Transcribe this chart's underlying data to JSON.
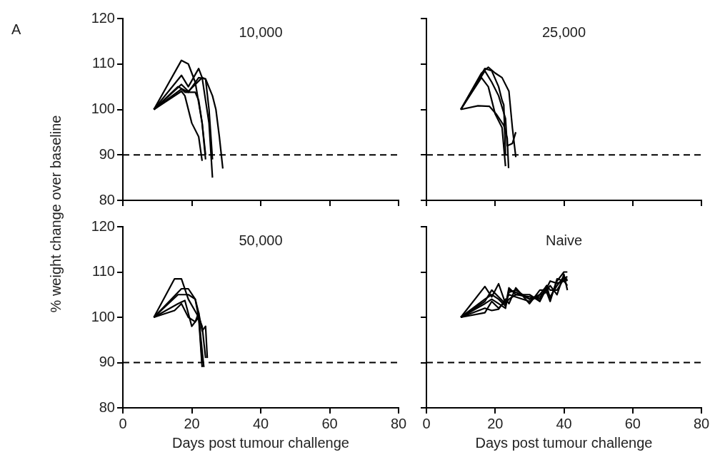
{
  "chart_data": [
    {
      "type": "line",
      "title": "10,000",
      "ylabel": "% weight change over baseline",
      "annotations": [
        "A"
      ],
      "xlim": [
        0,
        80
      ],
      "xticks": [
        0,
        20,
        40,
        60,
        80
      ],
      "ylim": [
        80,
        120
      ],
      "yticks": [
        80,
        90,
        100,
        110,
        120
      ],
      "tick_labels": "y",
      "marker": "none",
      "line_style": "solid",
      "legend": false,
      "ref_lines": [
        {
          "axis": "y",
          "value": 90,
          "color": "#000000",
          "line_style": "dashed"
        }
      ],
      "series": [
        {
          "color": "#000000",
          "x": [
            9,
            17,
            19,
            21,
            23,
            24
          ],
          "values": [
            100,
            110.8,
            110,
            106,
            97,
            90
          ]
        },
        {
          "color": "#000000",
          "x": [
            9,
            17,
            19,
            22,
            23,
            25,
            26
          ],
          "values": [
            100,
            107.5,
            105,
            109,
            107,
            97,
            85
          ]
        },
        {
          "color": "#000000",
          "x": [
            9,
            17,
            19,
            23,
            24,
            26,
            27,
            28,
            29
          ],
          "values": [
            100,
            105.5,
            104,
            107,
            106.7,
            103,
            100,
            94,
            87
          ]
        },
        {
          "color": "#000000",
          "x": [
            9,
            17,
            18,
            21,
            22,
            23,
            24
          ],
          "values": [
            100,
            104.5,
            103.8,
            103.8,
            102,
            97,
            89
          ]
        },
        {
          "color": "#000000",
          "x": [
            9,
            17,
            18,
            20,
            22,
            23
          ],
          "values": [
            100,
            104,
            103,
            97,
            94,
            88.7
          ]
        },
        {
          "color": "#000000",
          "x": [
            9,
            16,
            19,
            22,
            24,
            25,
            26
          ],
          "values": [
            100,
            105,
            103.8,
            107,
            106.7,
            100,
            89
          ]
        }
      ]
    },
    {
      "type": "line",
      "title": "25,000",
      "xlim": [
        0,
        80
      ],
      "xticks": [
        0,
        20,
        40,
        60,
        80
      ],
      "ylim": [
        80,
        120
      ],
      "yticks": [
        80,
        90,
        100,
        110,
        120
      ],
      "tick_labels": false,
      "marker": "none",
      "line_style": "solid",
      "legend": false,
      "ref_lines": [
        {
          "axis": "y",
          "value": 90,
          "color": "#000000",
          "line_style": "dashed"
        }
      ],
      "series": [
        {
          "color": "#000000",
          "x": [
            10,
            16,
            18,
            20,
            22,
            24,
            25,
            26
          ],
          "values": [
            100,
            108,
            109.3,
            108,
            107,
            104,
            96,
            89.5
          ]
        },
        {
          "color": "#000000",
          "x": [
            10,
            17,
            19,
            21,
            23,
            23.5,
            25,
            26
          ],
          "values": [
            100,
            108.5,
            106,
            103,
            98,
            92,
            92.5,
            95
          ]
        },
        {
          "color": "#000000",
          "x": [
            10,
            16,
            18,
            20,
            22,
            23
          ],
          "values": [
            100,
            107,
            105,
            99,
            96,
            87.5
          ]
        },
        {
          "color": "#000000",
          "x": [
            10,
            15,
            18.3,
            20.4,
            22.5,
            23.5,
            23.9
          ],
          "values": [
            100,
            100.8,
            100.7,
            98.9,
            96.5,
            93.7,
            87.1
          ]
        },
        {
          "color": "#000000",
          "x": [
            10,
            17,
            19,
            21,
            22,
            22.5,
            23
          ],
          "values": [
            100,
            109,
            108.5,
            105,
            102,
            101,
            90
          ]
        }
      ]
    },
    {
      "type": "line",
      "title": "50,000",
      "xlabel": "Days post tumour challenge",
      "xlim": [
        0,
        80
      ],
      "xticks": [
        0,
        20,
        40,
        60,
        80
      ],
      "ylim": [
        80,
        120
      ],
      "yticks": [
        80,
        90,
        100,
        110,
        120
      ],
      "marker": "none",
      "line_style": "solid",
      "legend": false,
      "ref_lines": [
        {
          "axis": "y",
          "value": 90,
          "color": "#000000",
          "line_style": "dashed"
        }
      ],
      "series": [
        {
          "color": "#000000",
          "x": [
            9,
            15,
            17,
            19,
            22,
            23
          ],
          "values": [
            100,
            108.5,
            108.5,
            104,
            100,
            89
          ]
        },
        {
          "color": "#000000",
          "x": [
            9,
            17,
            19,
            21,
            22,
            23
          ],
          "values": [
            100,
            106.3,
            106.3,
            104,
            101,
            90
          ]
        },
        {
          "color": "#000000",
          "x": [
            9,
            16,
            19,
            21,
            22,
            23.5
          ],
          "values": [
            100,
            105,
            105,
            104,
            100,
            89
          ]
        },
        {
          "color": "#000000",
          "x": [
            9,
            16,
            18,
            20,
            22,
            23,
            24
          ],
          "values": [
            100,
            103,
            103.7,
            98,
            100,
            98,
            91
          ]
        },
        {
          "color": "#000000",
          "x": [
            9,
            15,
            17,
            19,
            21,
            22,
            23,
            24,
            24.5
          ],
          "values": [
            100,
            101.5,
            103,
            100,
            99,
            101,
            97,
            98,
            91
          ]
        }
      ]
    },
    {
      "type": "line",
      "title": "Naive",
      "xlabel": "Days post tumour challenge",
      "xlim": [
        0,
        80
      ],
      "xticks": [
        0,
        20,
        40,
        60,
        80
      ],
      "ylim": [
        80,
        120
      ],
      "yticks": [
        80,
        90,
        100,
        110,
        120
      ],
      "tick_labels": "x",
      "marker": "none",
      "line_style": "solid",
      "legend": false,
      "ref_lines": [
        {
          "axis": "y",
          "value": 90,
          "color": "#000000",
          "line_style": "dashed"
        }
      ],
      "series": [
        {
          "color": "#000000",
          "x": [
            10,
            17,
            19,
            21,
            23,
            24,
            26,
            30,
            33,
            35,
            36,
            38,
            40,
            41
          ],
          "values": [
            100,
            106.8,
            104.5,
            107.4,
            103,
            105.5,
            106,
            104,
            105,
            107,
            104,
            108,
            110,
            110
          ]
        },
        {
          "color": "#000000",
          "x": [
            10,
            17,
            19,
            21,
            23,
            24,
            26,
            30,
            33,
            35,
            36,
            38,
            40,
            41
          ],
          "values": [
            100,
            103,
            104,
            103,
            102,
            106,
            105.5,
            104,
            104.5,
            106,
            104.5,
            107,
            109,
            108
          ]
        },
        {
          "color": "#000000",
          "x": [
            10,
            17,
            19,
            21,
            23,
            24,
            26,
            30,
            33,
            35,
            36,
            38,
            40,
            41
          ],
          "values": [
            100,
            101,
            103.5,
            102,
            103.5,
            105,
            104.5,
            103.5,
            105,
            105.5,
            103.5,
            108.5,
            108,
            107
          ]
        },
        {
          "color": "#000000",
          "x": [
            10,
            17,
            19,
            21,
            23,
            24,
            26,
            30,
            33,
            35,
            36,
            38,
            40,
            41
          ],
          "values": [
            100,
            104,
            105,
            104,
            102.5,
            106.5,
            105,
            104.5,
            104,
            107,
            106,
            106,
            108.5,
            109
          ]
        },
        {
          "color": "#000000",
          "x": [
            10,
            17,
            19,
            21,
            23,
            24,
            26,
            30,
            33,
            35,
            36,
            38,
            40,
            41
          ],
          "values": [
            100,
            102,
            101.5,
            101.8,
            104,
            103,
            106.5,
            103,
            106,
            106,
            107,
            105,
            109.5,
            106
          ]
        },
        {
          "color": "#000000",
          "x": [
            10,
            17,
            19,
            21,
            23,
            24,
            26,
            30,
            33,
            35,
            36,
            38,
            40,
            41
          ],
          "values": [
            100,
            103.5,
            106,
            104.5,
            103,
            104,
            105,
            105,
            103.5,
            106.5,
            108,
            107.5,
            108,
            108.5
          ]
        }
      ]
    }
  ]
}
